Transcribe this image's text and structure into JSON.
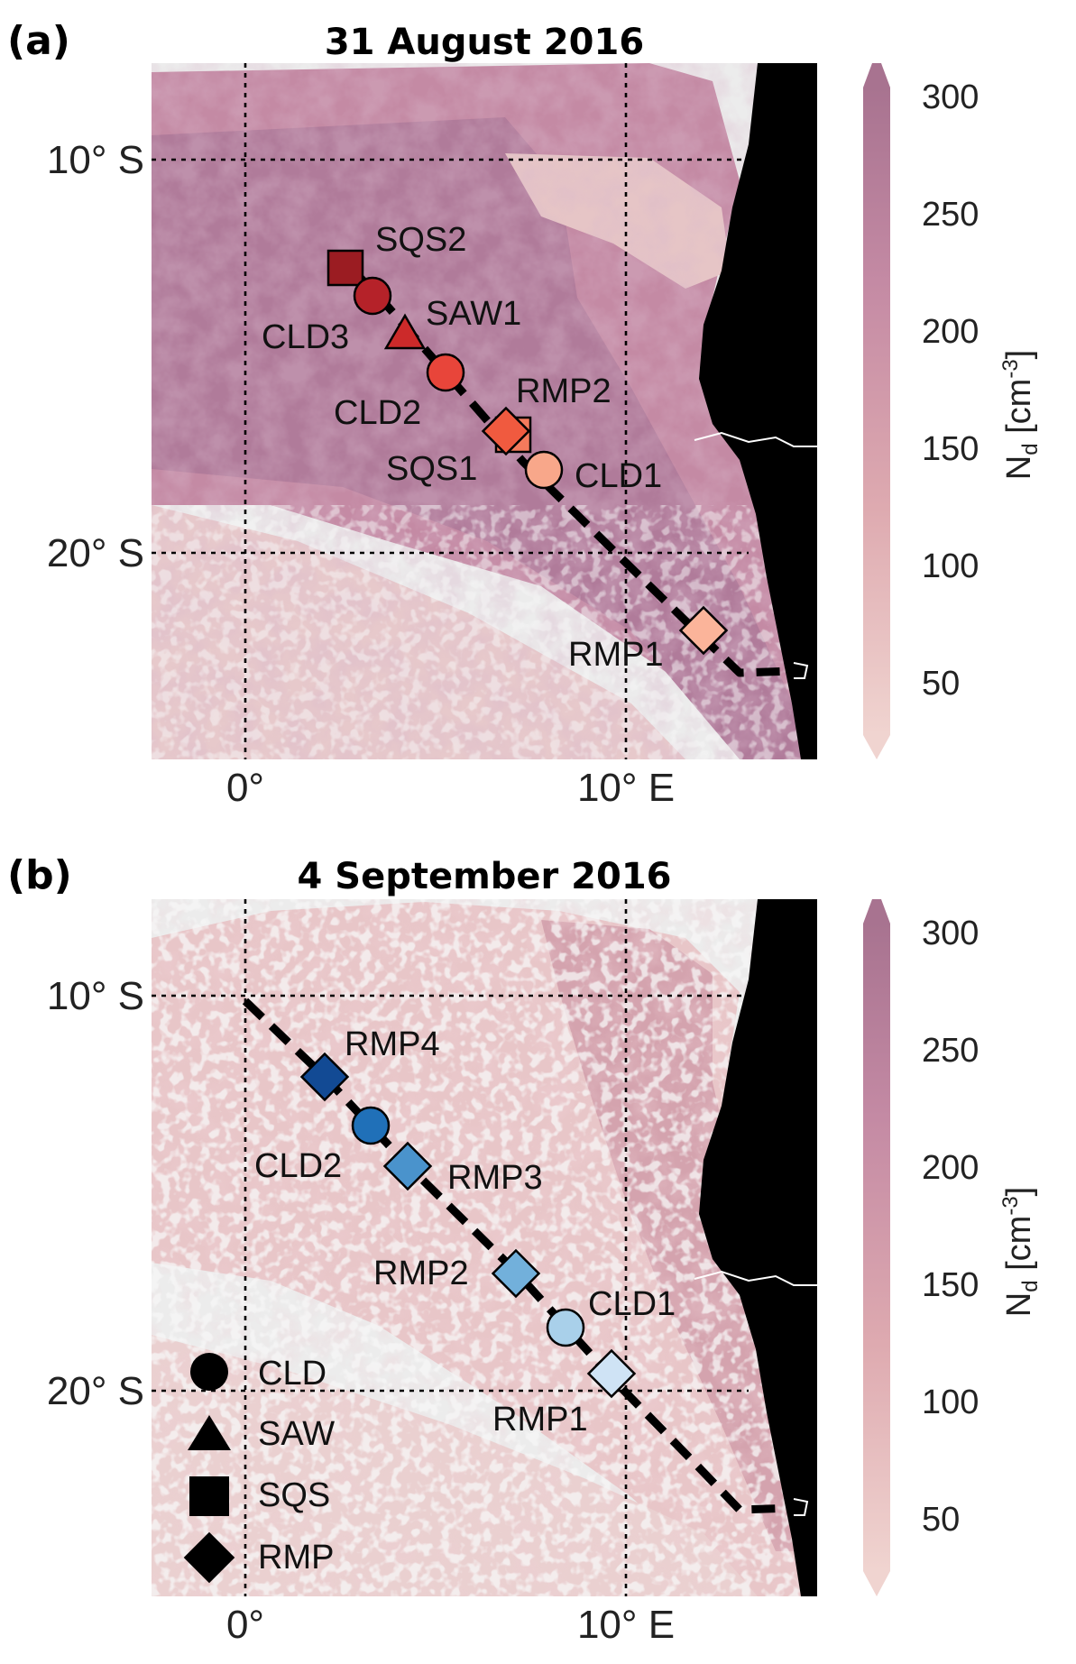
{
  "colors": {
    "ocean_clear": "#ececec",
    "land": "#000000",
    "cloud_low": "#f0d4d0",
    "cloud_high": "#a87390"
  },
  "colorbar": {
    "label_main": "N",
    "label_sub": "d",
    "label_unit": " [cm",
    "label_exp": "-3",
    "label_close": "]",
    "ticks": [
      "300",
      "250",
      "200",
      "150",
      "100",
      "50"
    ]
  },
  "axes": {
    "lat_ticks": [
      "10° S",
      "20° S"
    ],
    "lon_ticks": [
      "0°",
      "10° E"
    ]
  },
  "panels": [
    {
      "letter": "(a)",
      "title": "31 August 2016",
      "sites": [
        {
          "label": "SQS2",
          "type": "SQS",
          "color": "#9b1c22"
        },
        {
          "label": "CLD3",
          "type": "CLD",
          "color": "#b52229"
        },
        {
          "label": "SAW1",
          "type": "SAW",
          "color": "#cc2a2a"
        },
        {
          "label": "CLD2",
          "type": "CLD",
          "color": "#e8453a"
        },
        {
          "label": "RMP2",
          "type": "RMP",
          "color": "#f05a3f"
        },
        {
          "label": "SQS1",
          "type": "SQS",
          "color": "#f47a5c"
        },
        {
          "label": "CLD1",
          "type": "CLD",
          "color": "#f8a78a"
        },
        {
          "label": "RMP1",
          "type": "RMP",
          "color": "#fbb49a"
        }
      ]
    },
    {
      "letter": "(b)",
      "title": "4 September 2016",
      "sites": [
        {
          "label": "RMP4",
          "type": "RMP",
          "color": "#124a94"
        },
        {
          "label": "CLD2",
          "type": "CLD",
          "color": "#2070b8"
        },
        {
          "label": "RMP3",
          "type": "RMP",
          "color": "#4a93cc"
        },
        {
          "label": "RMP2",
          "type": "RMP",
          "color": "#72b0db"
        },
        {
          "label": "CLD1",
          "type": "CLD",
          "color": "#a9d0ea"
        },
        {
          "label": "RMP1",
          "type": "RMP",
          "color": "#cfe3f5"
        }
      ]
    }
  ],
  "legend": [
    {
      "label": "CLD",
      "type": "CLD"
    },
    {
      "label": "SAW",
      "type": "SAW"
    },
    {
      "label": "SQS",
      "type": "SQS"
    },
    {
      "label": "RMP",
      "type": "RMP"
    }
  ]
}
